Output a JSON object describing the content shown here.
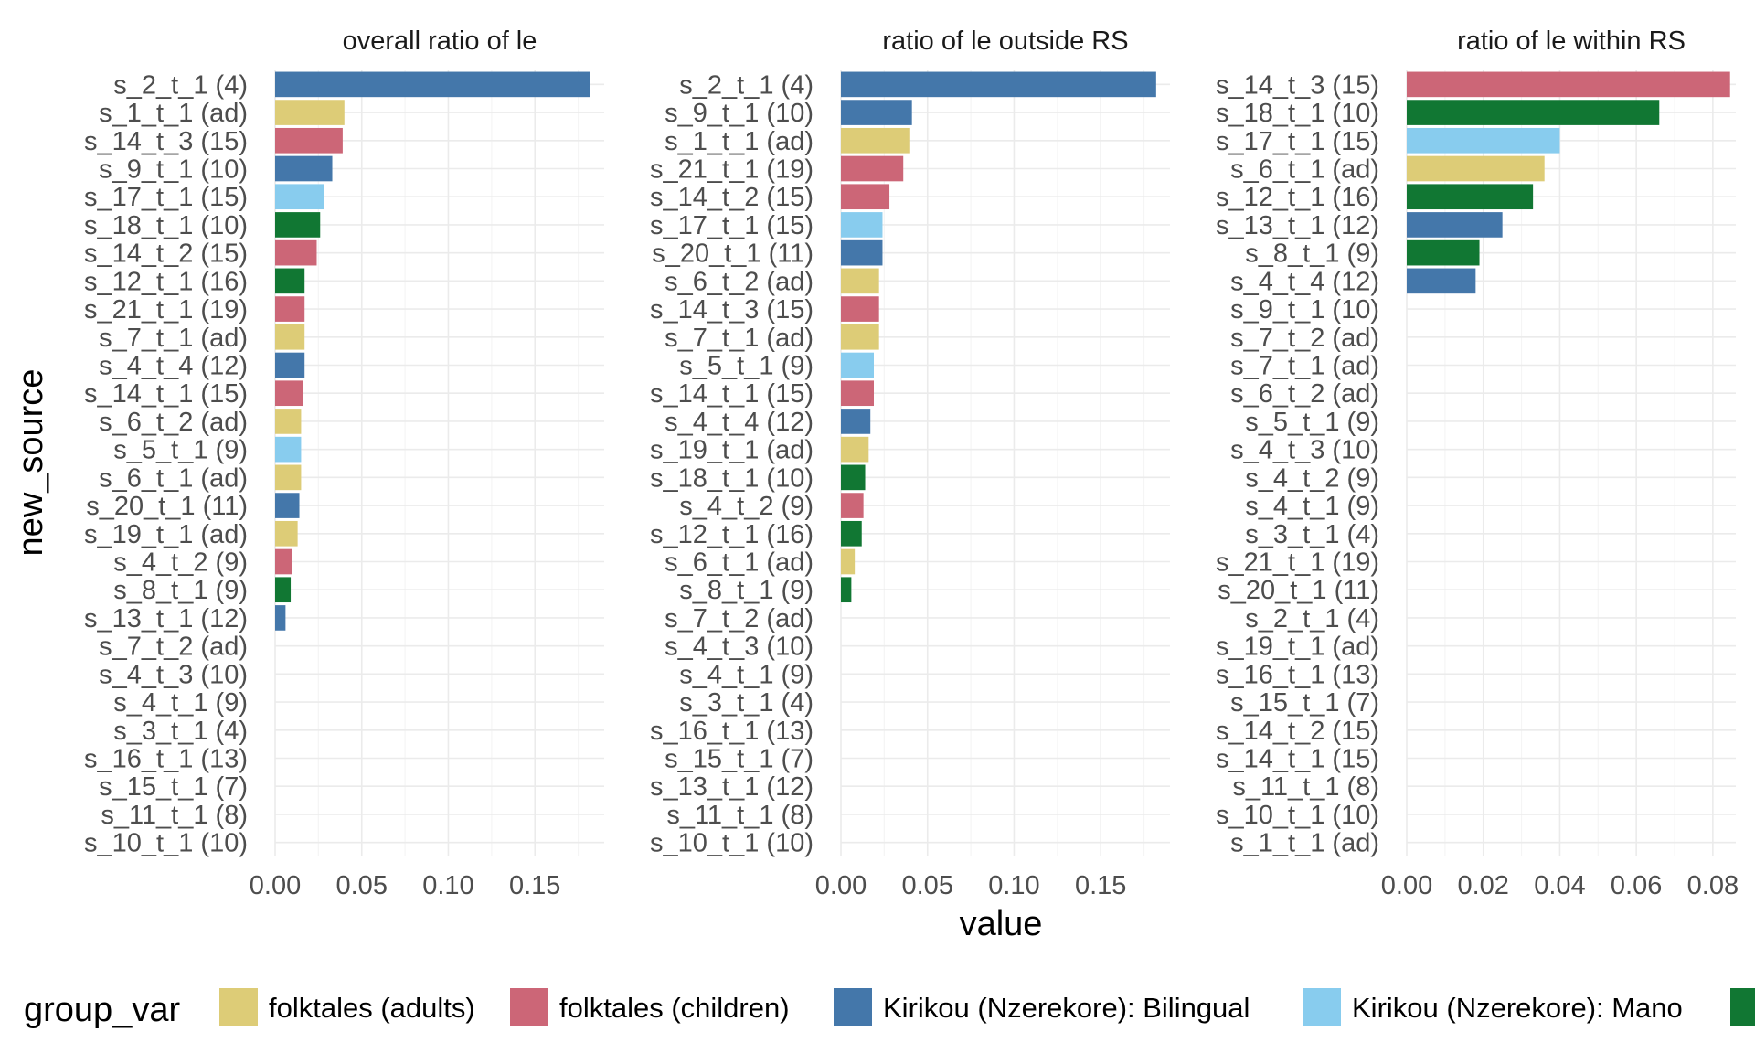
{
  "chart_data": {
    "type": "bar",
    "orientation": "horizontal",
    "xlabel": "value",
    "ylabel": "new_source",
    "grid": true,
    "legend": {
      "title": "group_var",
      "position": "bottom",
      "items": [
        {
          "label": "folktales (adults)",
          "color": "#DDCC77"
        },
        {
          "label": "folktales (children)",
          "color": "#CC6677"
        },
        {
          "label": "Kirikou (Nzerekore): Bilingual",
          "color": "#4477AA"
        },
        {
          "label": "Kirikou (Nzerekore): Mano",
          "color": "#88CCEE"
        },
        {
          "label": "",
          "color": "#117733"
        }
      ]
    },
    "panels": [
      {
        "title": "overall ratio of le",
        "xlim": [
          0,
          0.19
        ],
        "xticks": [
          "0.00",
          "0.05",
          "0.10",
          "0.15"
        ],
        "xtick_values": [
          0,
          0.05,
          0.1,
          0.15
        ],
        "categories": [
          "s_2_t_1 (4)",
          "s_1_t_1 (ad)",
          "s_14_t_3 (15)",
          "s_9_t_1 (10)",
          "s_17_t_1 (15)",
          "s_18_t_1 (10)",
          "s_14_t_2 (15)",
          "s_12_t_1 (16)",
          "s_21_t_1 (19)",
          "s_7_t_1 (ad)",
          "s_4_t_4 (12)",
          "s_14_t_1 (15)",
          "s_6_t_2 (ad)",
          "s_5_t_1 (9)",
          "s_6_t_1 (ad)",
          "s_20_t_1 (11)",
          "s_19_t_1 (ad)",
          "s_4_t_2 (9)",
          "s_8_t_1 (9)",
          "s_13_t_1 (12)",
          "s_7_t_2 (ad)",
          "s_4_t_3 (10)",
          "s_4_t_1 (9)",
          "s_3_t_1 (4)",
          "s_16_t_1 (13)",
          "s_15_t_1 (7)",
          "s_11_t_1 (8)",
          "s_10_t_1 (10)"
        ],
        "values": [
          0.182,
          0.04,
          0.039,
          0.033,
          0.028,
          0.026,
          0.024,
          0.017,
          0.017,
          0.017,
          0.017,
          0.016,
          0.015,
          0.015,
          0.015,
          0.014,
          0.013,
          0.01,
          0.009,
          0.006,
          0,
          0,
          0,
          0,
          0,
          0,
          0,
          0
        ],
        "groups": [
          2,
          0,
          1,
          2,
          3,
          4,
          1,
          4,
          1,
          0,
          2,
          1,
          0,
          3,
          0,
          2,
          0,
          1,
          4,
          2,
          null,
          null,
          null,
          null,
          null,
          null,
          null,
          null
        ]
      },
      {
        "title": "ratio of le outside RS",
        "xlim": [
          0,
          0.19
        ],
        "xticks": [
          "0.00",
          "0.05",
          "0.10",
          "0.15"
        ],
        "xtick_values": [
          0,
          0.05,
          0.1,
          0.15
        ],
        "categories": [
          "s_2_t_1 (4)",
          "s_9_t_1 (10)",
          "s_1_t_1 (ad)",
          "s_21_t_1 (19)",
          "s_14_t_2 (15)",
          "s_17_t_1 (15)",
          "s_20_t_1 (11)",
          "s_6_t_2 (ad)",
          "s_14_t_3 (15)",
          "s_7_t_1 (ad)",
          "s_5_t_1 (9)",
          "s_14_t_1 (15)",
          "s_4_t_4 (12)",
          "s_19_t_1 (ad)",
          "s_18_t_1 (10)",
          "s_4_t_2 (9)",
          "s_12_t_1 (16)",
          "s_6_t_1 (ad)",
          "s_8_t_1 (9)",
          "s_7_t_2 (ad)",
          "s_4_t_3 (10)",
          "s_4_t_1 (9)",
          "s_3_t_1 (4)",
          "s_16_t_1 (13)",
          "s_15_t_1 (7)",
          "s_13_t_1 (12)",
          "s_11_t_1 (8)",
          "s_10_t_1 (10)"
        ],
        "values": [
          0.182,
          0.041,
          0.04,
          0.036,
          0.028,
          0.024,
          0.024,
          0.022,
          0.022,
          0.022,
          0.019,
          0.019,
          0.017,
          0.016,
          0.014,
          0.013,
          0.012,
          0.008,
          0.006,
          0,
          0,
          0,
          0,
          0,
          0,
          0,
          0,
          0
        ],
        "groups": [
          2,
          2,
          0,
          1,
          1,
          3,
          2,
          0,
          1,
          0,
          3,
          1,
          2,
          0,
          4,
          1,
          4,
          0,
          4,
          null,
          null,
          null,
          null,
          null,
          null,
          null,
          null,
          null
        ]
      },
      {
        "title": "ratio of le within RS",
        "xlim": [
          0,
          0.086
        ],
        "xticks": [
          "0.00",
          "0.02",
          "0.04",
          "0.06",
          "0.08"
        ],
        "xtick_values": [
          0,
          0.02,
          0.04,
          0.06,
          0.08
        ],
        "categories": [
          "s_14_t_3 (15)",
          "s_18_t_1 (10)",
          "s_17_t_1 (15)",
          "s_6_t_1 (ad)",
          "s_12_t_1 (16)",
          "s_13_t_1 (12)",
          "s_8_t_1 (9)",
          "s_4_t_4 (12)",
          "s_9_t_1 (10)",
          "s_7_t_2 (ad)",
          "s_7_t_1 (ad)",
          "s_6_t_2 (ad)",
          "s_5_t_1 (9)",
          "s_4_t_3 (10)",
          "s_4_t_2 (9)",
          "s_4_t_1 (9)",
          "s_3_t_1 (4)",
          "s_21_t_1 (19)",
          "s_20_t_1 (11)",
          "s_2_t_1 (4)",
          "s_19_t_1 (ad)",
          "s_16_t_1 (13)",
          "s_15_t_1 (7)",
          "s_14_t_2 (15)",
          "s_14_t_1 (15)",
          "s_11_t_1 (8)",
          "s_10_t_1 (10)",
          "s_1_t_1 (ad)"
        ],
        "values": [
          0.0845,
          0.066,
          0.04,
          0.036,
          0.033,
          0.025,
          0.019,
          0.018,
          0,
          0,
          0,
          0,
          0,
          0,
          0,
          0,
          0,
          0,
          0,
          0,
          0,
          0,
          0,
          0,
          0,
          0,
          0,
          0
        ],
        "groups": [
          1,
          4,
          3,
          0,
          4,
          2,
          4,
          2,
          null,
          null,
          null,
          null,
          null,
          null,
          null,
          null,
          null,
          null,
          null,
          null,
          null,
          null,
          null,
          null,
          null,
          null,
          null,
          null
        ]
      }
    ]
  }
}
